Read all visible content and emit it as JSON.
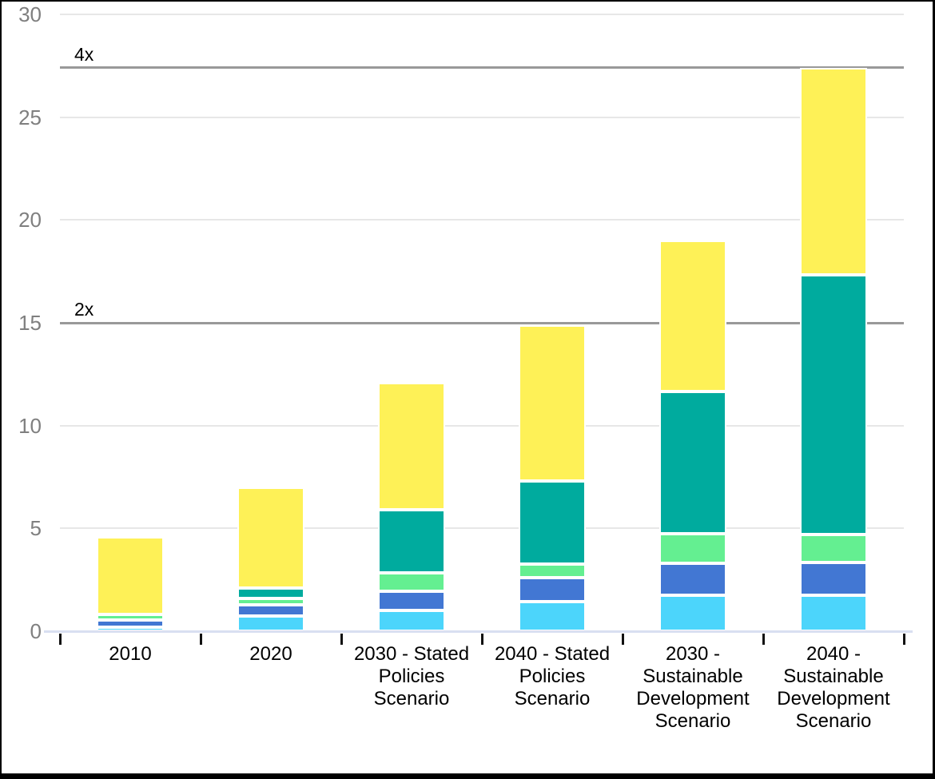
{
  "chart_data": {
    "type": "bar",
    "stacked": true,
    "title": "",
    "xlabel": "",
    "ylabel": "",
    "legend": null,
    "y_axis": {
      "tick_labels": [
        "0",
        "5",
        "10",
        "15",
        "20",
        "25",
        "30"
      ],
      "tick_values": [
        0,
        5,
        10,
        15,
        20,
        25,
        30
      ],
      "range": [
        0,
        30
      ],
      "grid": true
    },
    "categories": [
      "2010",
      "2020",
      "2030 - Stated Policies Scenario",
      "2040 - Stated Policies Scenario",
      "2030 - Sustainable Development Scenario",
      "2040 - Sustainable Development Scenario"
    ],
    "category_label_lines": [
      [
        "2010"
      ],
      [
        "2020"
      ],
      [
        "2030 - Stated",
        "Policies",
        "Scenario"
      ],
      [
        "2040 - Stated",
        "Policies",
        "Scenario"
      ],
      [
        "2030 -",
        "Sustainable",
        "Development",
        "Scenario"
      ],
      [
        "2040 -",
        "Sustainable",
        "Development",
        "Scenario"
      ]
    ],
    "series": [
      {
        "name": "light-blue-bottom-segment",
        "color": "#4CD5FB",
        "values": [
          0.2,
          0.75,
          1.0,
          1.45,
          1.75,
          1.75
        ]
      },
      {
        "name": "blue-segment",
        "color": "#4277D3",
        "values": [
          0.35,
          0.55,
          0.95,
          1.15,
          1.55,
          1.6
        ]
      },
      {
        "name": "light-green-segment",
        "color": "#64EF91",
        "values": [
          0.25,
          0.3,
          0.9,
          0.65,
          1.45,
          1.35
        ]
      },
      {
        "name": "teal-segment",
        "color": "#00AB9E",
        "values": [
          0.0,
          0.5,
          3.05,
          4.05,
          6.9,
          12.65
        ]
      },
      {
        "name": "yellow-top-segment",
        "color": "#FEF157",
        "values": [
          3.8,
          4.9,
          6.2,
          7.6,
          7.35,
          10.05
        ]
      }
    ],
    "stack_totals": [
      4.6,
      7.0,
      12.1,
      14.9,
      19.0,
      27.4
    ],
    "reference_lines": [
      {
        "label": "2x",
        "value": 15.0
      },
      {
        "label": "4x",
        "value": 27.4
      }
    ],
    "colors": {
      "grid": "#E7E7E7",
      "reference_line": "#999999",
      "axis_line": "#D9DFF1",
      "y_tick_label": "#7F7F7F",
      "x_tick_label": "#000000",
      "tick_mark": "#111111",
      "background": "#FFFFFF"
    }
  }
}
